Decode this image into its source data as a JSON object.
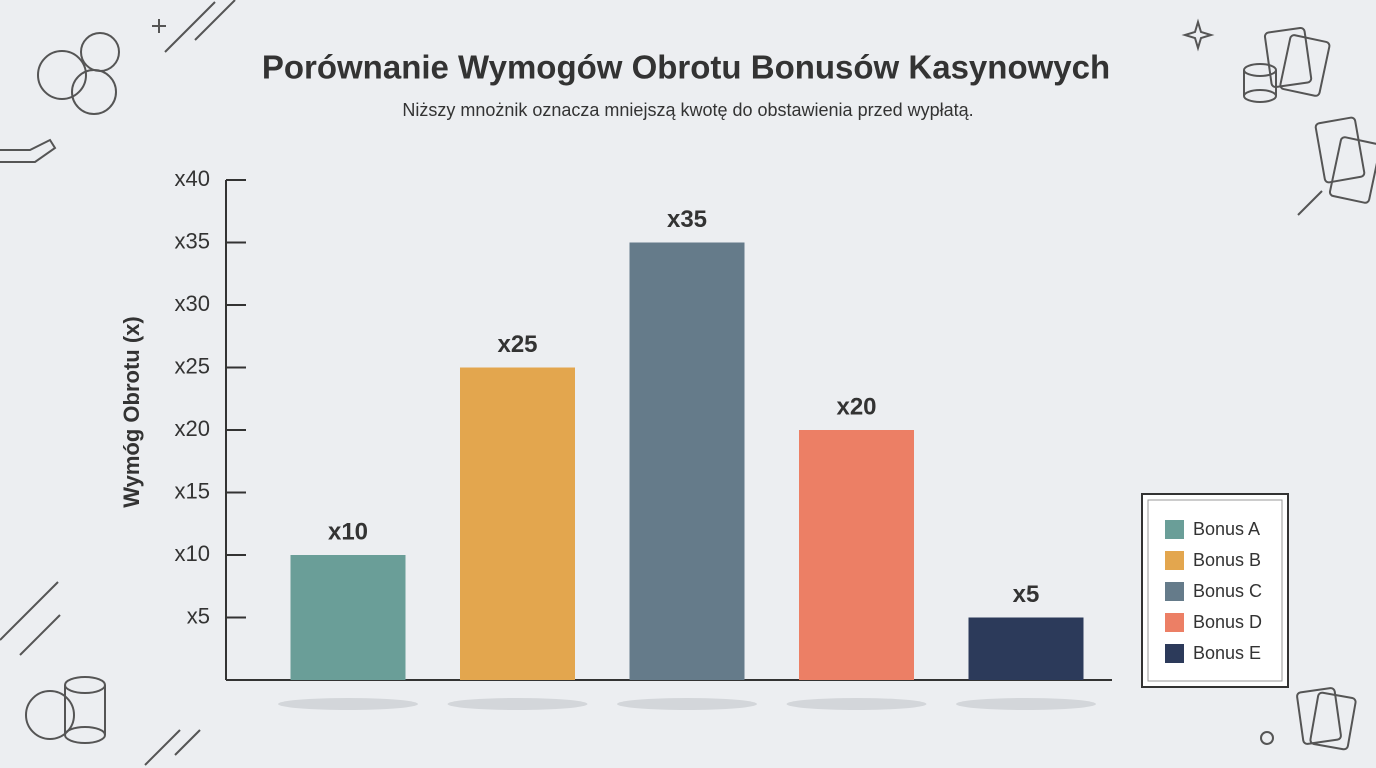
{
  "chart_data": {
    "type": "bar",
    "title": "Porównanie Wymogów Obrotu Bonusów Kasynowych",
    "subtitle": "Niższy mnożnik oznacza mniejszą kwotę do obstawienia przed wypłatą.",
    "y_label": "Wymóg Obrotu (x)",
    "categories": [
      "Bonus A",
      "Bonus B",
      "Bonus C",
      "Bonus D",
      "Bonus E"
    ],
    "values": [
      10,
      25,
      35,
      20,
      5
    ],
    "value_labels": [
      "x10",
      "x25",
      "x35",
      "x20",
      "x5"
    ],
    "colors": [
      "#6a9e98",
      "#e3a64e",
      "#657b8a",
      "#ec7f65",
      "#2c3a5a"
    ],
    "ylim": [
      0,
      40
    ],
    "yticks": [
      {
        "value": 5,
        "label": "x5"
      },
      {
        "value": 10,
        "label": "x10"
      },
      {
        "value": 15,
        "label": "x15"
      },
      {
        "value": 20,
        "label": "x20"
      },
      {
        "value": 25,
        "label": "x25"
      },
      {
        "value": 30,
        "label": "x30"
      },
      {
        "value": 35,
        "label": "x35"
      },
      {
        "value": 40,
        "label": "x40"
      }
    ],
    "grid": false,
    "legend": "right"
  }
}
